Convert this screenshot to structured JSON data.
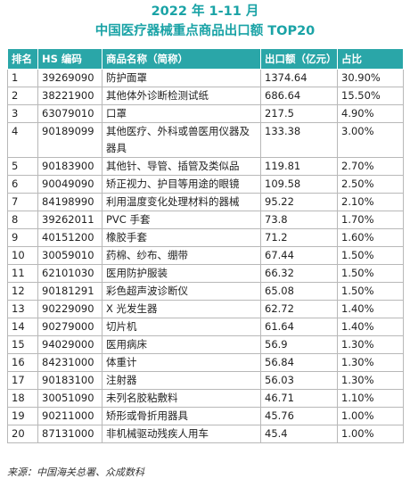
{
  "title": "2022 年 1-11 月",
  "subtitle": "中国医疗器械重点商品出口额 TOP20",
  "headers": [
    "排名",
    "HS 编码",
    "商品名称（简称）",
    "出口额（亿元）",
    "占比"
  ],
  "rows": [
    [
      "1",
      "39269090",
      "防护面罩",
      "1374.64",
      "30.90%"
    ],
    [
      "2",
      "38221900",
      "其他体外诊断检测试纸",
      "686.64",
      "15.50%"
    ],
    [
      "3",
      "63079010",
      "口罩",
      "217.5",
      "4.90%"
    ],
    [
      "4",
      "90189099",
      "其他医疗、外科或兽医用仪器及器具",
      "133.38",
      "3.00%"
    ],
    [
      "5",
      "90183900",
      "其他针、导管、插管及类似品",
      "119.81",
      "2.70%"
    ],
    [
      "6",
      "90049090",
      "矫正视力、护目等用途的眼镜",
      "109.58",
      "2.50%"
    ],
    [
      "7",
      "84198990",
      "利用温度变化处理材料的器械",
      "95.22",
      "2.10%"
    ],
    [
      "8",
      "39262011",
      "PVC 手套",
      "73.8",
      "1.70%"
    ],
    [
      "9",
      "40151200",
      "橡胶手套",
      "71.2",
      "1.60%"
    ],
    [
      "10",
      "30059010",
      "药棉、纱布、绷带",
      "67.44",
      "1.50%"
    ],
    [
      "11",
      "62101030",
      "医用防护服装",
      "66.32",
      "1.50%"
    ],
    [
      "12",
      "90181291",
      "彩色超声波诊断仪",
      "65.08",
      "1.50%"
    ],
    [
      "13",
      "90229090",
      "X 光发生器",
      "62.72",
      "1.40%"
    ],
    [
      "14",
      "90279000",
      "切片机",
      "61.64",
      "1.40%"
    ],
    [
      "15",
      "94029000",
      "医用病床",
      "56.9",
      "1.30%"
    ],
    [
      "16",
      "84231000",
      "体重计",
      "56.84",
      "1.30%"
    ],
    [
      "17",
      "90183100",
      "注射器",
      "56.03",
      "1.30%"
    ],
    [
      "18",
      "30051090",
      "未列名胶粘敷料",
      "46.71",
      "1.10%"
    ],
    [
      "19",
      "90211000",
      "矫形或骨折用器具",
      "45.76",
      "1.00%"
    ],
    [
      "20",
      "87131000",
      "非机械驱动残疾人用车",
      "45.4",
      "1.00%"
    ]
  ],
  "source": "来源：中国海关总署、众成数科"
}
